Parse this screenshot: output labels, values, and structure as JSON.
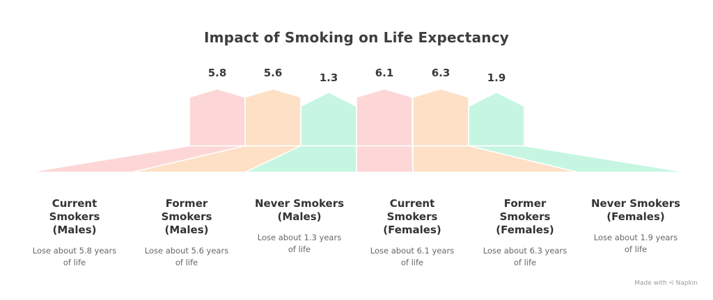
{
  "title": "Impact of Smoking on Life Expectancy",
  "credit": "Made with ⩤ Napkin",
  "colors": {
    "pink": "#fdd7d7",
    "peach": "#fde0c6",
    "mint": "#c6f6e2"
  },
  "groups": [
    {
      "value": "5.8",
      "label": "Current\nSmokers\n(Males)",
      "desc": "Lose about 5.8 years\nof life",
      "color": "pink"
    },
    {
      "value": "5.6",
      "label": "Former\nSmokers\n(Males)",
      "desc": "Lose about 5.6 years\nof life",
      "color": "peach"
    },
    {
      "value": "1.3",
      "label": "Never Smokers\n(Males)",
      "desc": "Lose about 1.3 years\nof life",
      "color": "mint"
    },
    {
      "value": "6.1",
      "label": "Current\nSmokers\n(Females)",
      "desc": "Lose about 6.1 years\nof life",
      "color": "pink"
    },
    {
      "value": "6.3",
      "label": "Former\nSmokers\n(Females)",
      "desc": "Lose about 6.3 years\nof life",
      "color": "peach"
    },
    {
      "value": "1.9",
      "label": "Never Smokers\n(Females)",
      "desc": "Lose about 1.9 years\nof life",
      "color": "mint"
    }
  ]
}
